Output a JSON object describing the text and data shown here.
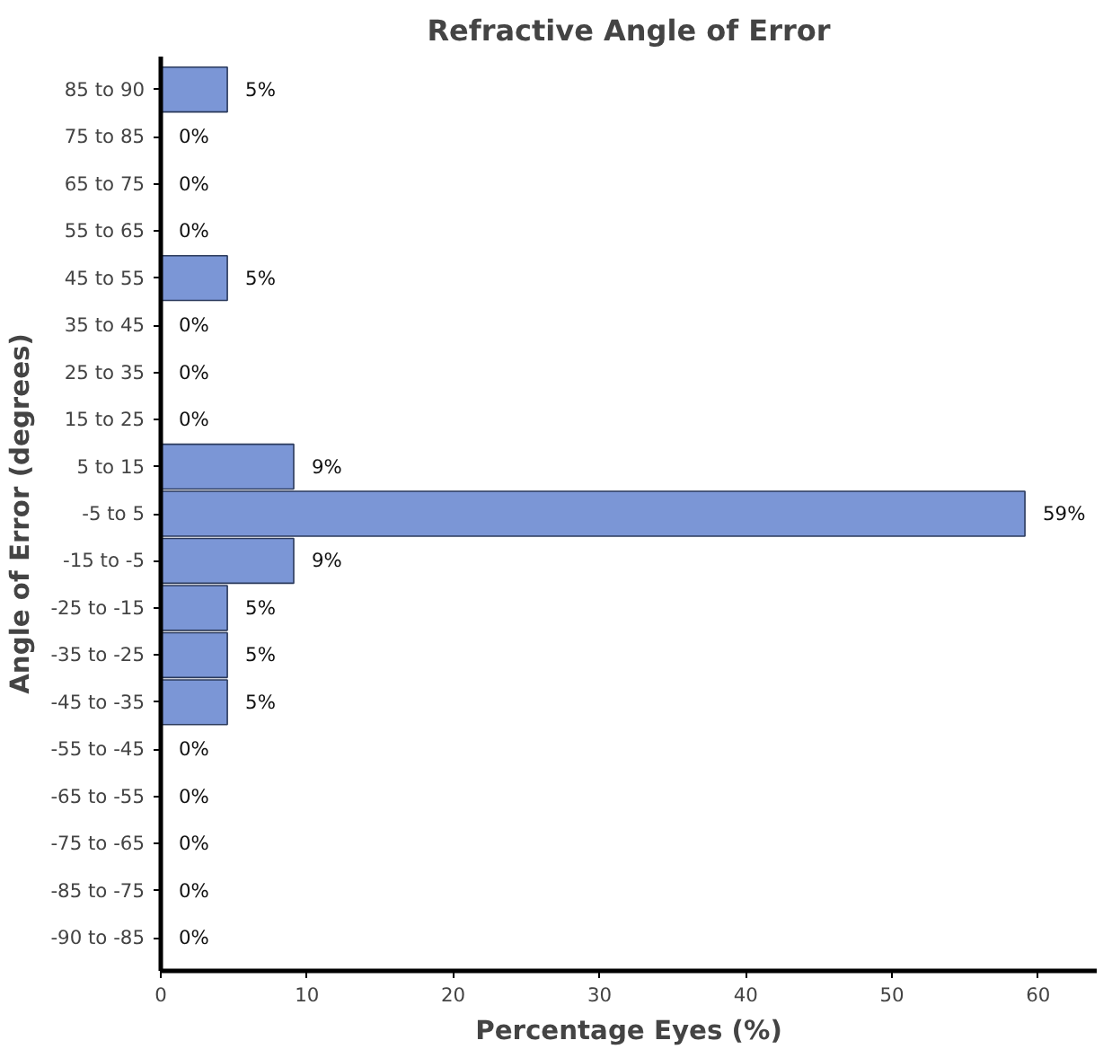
{
  "chart_data": {
    "type": "bar",
    "orientation": "horizontal",
    "title": "Refractive Angle of Error",
    "xlabel": "Percentage Eyes (%)",
    "ylabel": "Angle of Error (degrees)",
    "categories": [
      "85 to 90",
      "75 to 85",
      "65 to 75",
      "55 to 65",
      "45 to 55",
      "35 to 45",
      "25 to 35",
      "15 to 25",
      "5 to 15",
      "-5 to 5",
      "-15 to -5",
      "-25 to -15",
      "-35 to -25",
      "-45 to -35",
      "-55 to -45",
      "-65 to -55",
      "-75 to -65",
      "-85 to -75",
      "-90 to -85"
    ],
    "values": [
      4.55,
      0,
      0,
      0,
      4.55,
      0,
      0,
      0,
      9.09,
      59.09,
      9.09,
      4.55,
      4.55,
      4.55,
      0,
      0,
      0,
      0,
      0
    ],
    "value_labels": [
      "5%",
      "0%",
      "0%",
      "0%",
      "5%",
      "0%",
      "0%",
      "0%",
      "9%",
      "59%",
      "9%",
      "5%",
      "5%",
      "5%",
      "0%",
      "0%",
      "0%",
      "0%",
      "0%"
    ],
    "color": "#7b96d6",
    "xlim": [
      0,
      64
    ],
    "xticks": [
      0,
      10,
      20,
      30,
      40,
      50,
      60
    ],
    "grid": false
  }
}
